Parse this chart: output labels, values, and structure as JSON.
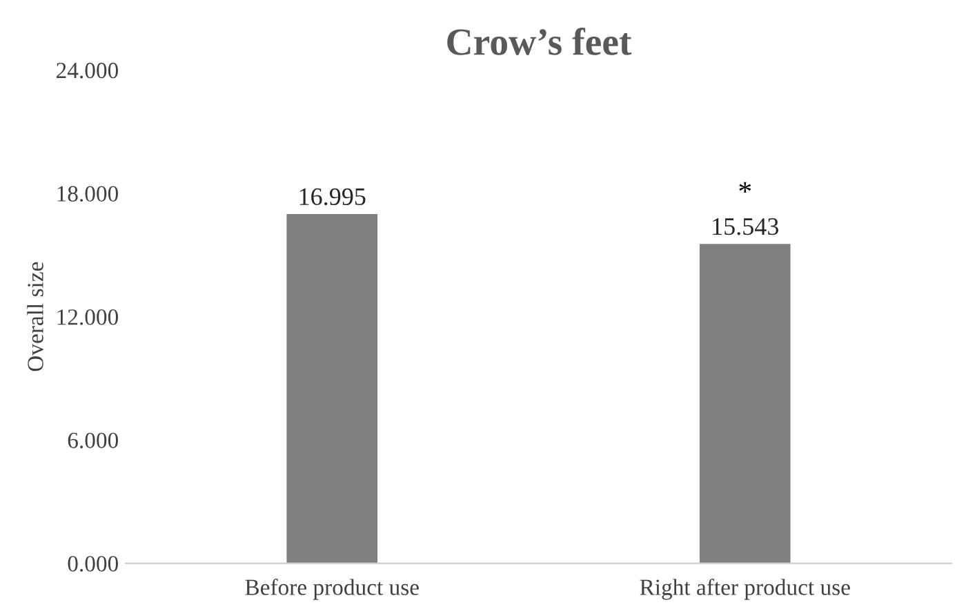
{
  "chart_data": {
    "type": "bar",
    "title": "Crow’s feet",
    "ylabel": "Overall size",
    "categories": [
      "Before product use",
      "Right after product use"
    ],
    "values": [
      16.995,
      15.543
    ],
    "color": "#808080",
    "value_labels": [
      "16.995",
      "15.543"
    ],
    "ylim": [
      0,
      24
    ],
    "yticks": [
      {
        "value": 0,
        "label": "0.000"
      },
      {
        "value": 6,
        "label": "6.000"
      },
      {
        "value": 12,
        "label": "12.000"
      },
      {
        "value": 18,
        "label": "18.000"
      },
      {
        "value": 24,
        "label": "24.000"
      }
    ],
    "annotations": [
      "*"
    ],
    "grid": false,
    "legend": false
  }
}
